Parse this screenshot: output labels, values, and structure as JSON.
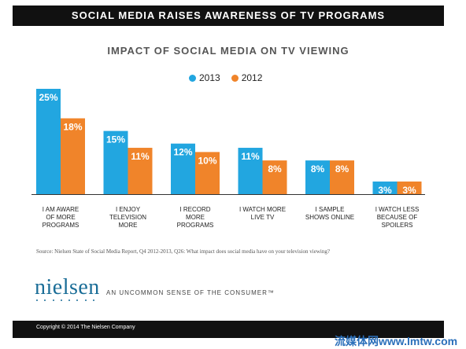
{
  "banner": {
    "title": "SOCIAL MEDIA RAISES AWARENESS OF TV PROGRAMS"
  },
  "chart_data": {
    "type": "bar",
    "title": "IMPACT OF SOCIAL MEDIA ON TV VIEWING",
    "categories": [
      [
        "I AM AWARE",
        "OF MORE",
        "PROGRAMS"
      ],
      [
        "I ENJOY",
        "TELEVISION",
        "MORE"
      ],
      [
        "I RECORD",
        "MORE",
        "PROGRAMS"
      ],
      [
        "I WATCH MORE",
        "LIVE TV"
      ],
      [
        "I SAMPLE",
        "SHOWS ONLINE"
      ],
      [
        "I WATCH LESS",
        "BECAUSE OF",
        "SPOILERS"
      ]
    ],
    "series": [
      {
        "name": "2013",
        "color": "#22a6e0",
        "values": [
          25,
          15,
          12,
          11,
          8,
          3
        ]
      },
      {
        "name": "2012",
        "color": "#f0842a",
        "values": [
          18,
          11,
          10,
          8,
          8,
          3
        ]
      }
    ],
    "value_suffix": "%",
    "ylim": [
      0,
      25
    ],
    "grid": false,
    "legend": "top-center"
  },
  "source": "Source: Nielsen State of Social Media Report, Q4 2012-2013, Q26: What impact does social media have on your television viewing?",
  "brand": {
    "logo": "nielsen",
    "tagline": "AN UNCOMMON SENSE OF THE CONSUMER™"
  },
  "footer": {
    "copyright": "Copyright © 2014 The Nielsen Company"
  },
  "watermark": "流媒体网www.lmtw.com"
}
